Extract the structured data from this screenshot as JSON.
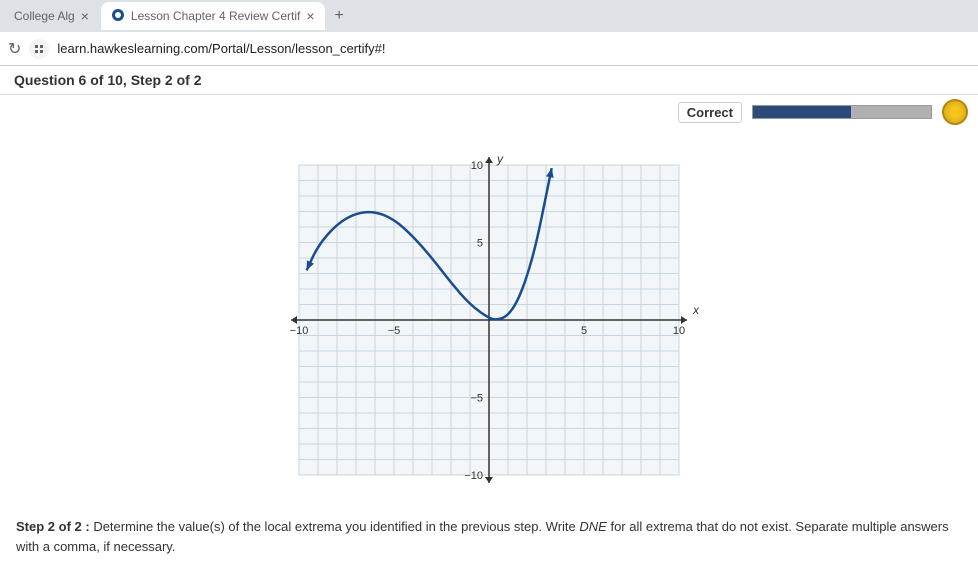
{
  "browser": {
    "tabs": [
      {
        "label": "College Alg",
        "active": false
      },
      {
        "label": "Lesson Chapter 4 Review Certif",
        "active": true
      }
    ],
    "url": "learn.hawkeslearning.com/Portal/Lesson/lesson_certify#!"
  },
  "question": {
    "header": "Question 6 of 10, Step 2 of 2",
    "status_label": "Correct",
    "progress_percent": 55
  },
  "chart": {
    "type": "line",
    "xlim": [
      -10,
      10
    ],
    "ylim": [
      -10,
      10
    ],
    "xtick_major": [
      -10,
      -5,
      5,
      10
    ],
    "ytick_major": [
      -10,
      -5,
      5,
      10
    ],
    "xlabel": "x",
    "ylabel": "y",
    "grid_color": "#c9d6de",
    "axis_color": "#333333",
    "curve_color": "#1a4d8f",
    "background_color": "#f2f6f8",
    "curve_points": [
      [
        -9.6,
        3.2
      ],
      [
        -9.0,
        4.8
      ],
      [
        -8.0,
        6.2
      ],
      [
        -7.0,
        6.9
      ],
      [
        -6.0,
        7.0
      ],
      [
        -5.0,
        6.5
      ],
      [
        -4.0,
        5.4
      ],
      [
        -3.0,
        4.0
      ],
      [
        -2.0,
        2.4
      ],
      [
        -1.0,
        1.0
      ],
      [
        0.0,
        0.1
      ],
      [
        0.5,
        0.0
      ],
      [
        1.0,
        0.3
      ],
      [
        1.5,
        1.2
      ],
      [
        2.0,
        2.8
      ],
      [
        2.5,
        5.0
      ],
      [
        3.0,
        8.0
      ],
      [
        3.3,
        9.8
      ]
    ],
    "start_arrow": true,
    "end_arrow": true
  },
  "step": {
    "prefix": "Step 2 of 2 :",
    "body": "Determine the value(s) of the local extrema you identified in the previous step. Write ",
    "dne": "DNE",
    "tail": " for all extrema that do not exist. Separate multiple answers with a comma, if necessary."
  }
}
